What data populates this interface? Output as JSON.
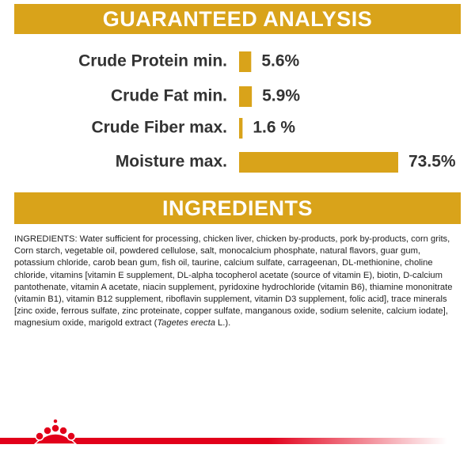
{
  "header": {
    "title": "GUARANTEED ANALYSIS"
  },
  "chart_data": {
    "type": "bar",
    "orientation": "horizontal",
    "categories": [
      "Crude Protein min.",
      "Crude Fat min.",
      "Crude Fiber max.",
      "Moisture max."
    ],
    "values": [
      5.6,
      5.9,
      1.6,
      73.5
    ],
    "value_labels": [
      "5.6%",
      "5.9%",
      "1.6 %",
      "73.5%"
    ],
    "color": "#d9a31a"
  },
  "ingredients": {
    "title": "INGREDIENTS",
    "text_before": "INGREDIENTS: Water sufficient for processing, chicken liver, chicken by-products, pork by-products, corn grits, Corn starch, vegetable oil, powdered cellulose, salt, monocalcium phosphate, natural flavors, guar gum, potassium chloride, carob bean gum, fish oil, taurine, calcium sulfate, carrageenan, DL-methionine, choline chloride, vitamins [vitamin E supplement, DL-alpha tocopherol acetate (source of vitamin E), biotin, D-calcium pantothenate, vitamin A acetate, niacin supplement, pyridoxine hydrochloride (vitamin B6), thiamine mononitrate (vitamin B1), vitamin B12 supplement, riboflavin supplement, vitamin D3 supplement, folic acid], trace minerals [zinc oxide, ferrous sulfate, zinc proteinate, copper sulfate, manganous oxide, sodium selenite, calcium iodate], magnesium oxide, marigold extract (",
    "text_italic": "Tagetes erecta",
    "text_after": " L.)."
  }
}
